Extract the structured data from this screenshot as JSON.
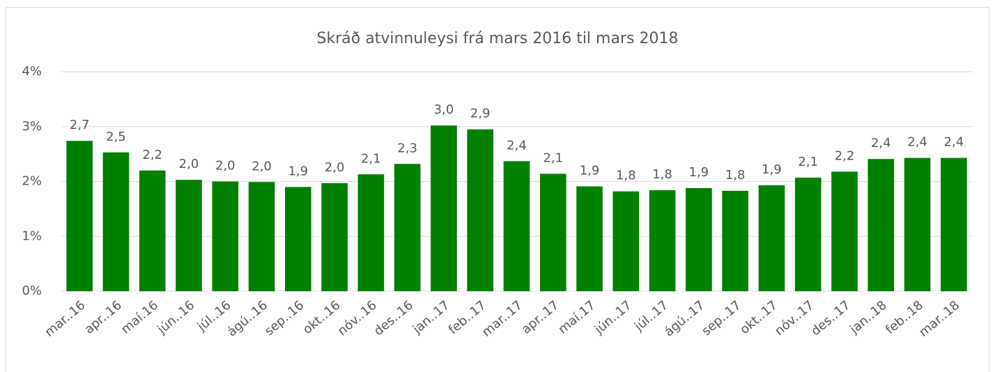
{
  "chart_data": {
    "type": "bar",
    "title": "Skráð atvinnuleysi frá mars 2016 til mars 2018",
    "categories": [
      "mar..16",
      "apr..16",
      "maí.16",
      "jún..16",
      "júl..16",
      "ágú..16",
      "sep..16",
      "okt..16",
      "nóv..16",
      "des..16",
      "jan..17",
      "feb..17",
      "mar..17",
      "apr..17",
      "maí.17",
      "jún..17",
      "júl..17",
      "ágú..17",
      "sep..17",
      "okt..17",
      "nóv..17",
      "des..17",
      "jan..18",
      "feb..18",
      "mar..18"
    ],
    "values": [
      2.74,
      2.53,
      2.2,
      2.03,
      2.0,
      1.99,
      1.9,
      1.97,
      2.13,
      2.32,
      3.02,
      2.95,
      2.37,
      2.14,
      1.91,
      1.82,
      1.84,
      1.88,
      1.83,
      1.93,
      2.07,
      2.18,
      2.41,
      2.43,
      2.43
    ],
    "value_labels": [
      "2,7",
      "2,5",
      "2,2",
      "2,0",
      "2,0",
      "2,0",
      "1,9",
      "2,0",
      "2,1",
      "2,3",
      "3,0",
      "2,9",
      "2,4",
      "2,1",
      "1,9",
      "1,8",
      "1,8",
      "1,9",
      "1,8",
      "1,9",
      "2,1",
      "2,2",
      "2,4",
      "2,4",
      "2,4"
    ],
    "color": "#008000",
    "ylim": [
      0,
      4
    ],
    "yticks": [
      {
        "value": 0,
        "label": "0%"
      },
      {
        "value": 1,
        "label": "1%"
      },
      {
        "value": 2,
        "label": "2%"
      },
      {
        "value": 3,
        "label": "3%"
      },
      {
        "value": 4,
        "label": "4%"
      }
    ],
    "grid": true
  }
}
